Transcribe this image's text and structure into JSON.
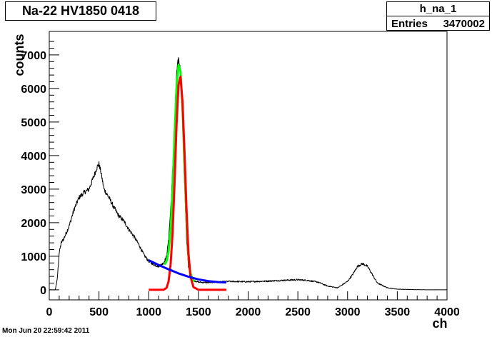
{
  "chart_data": {
    "type": "line",
    "title": "Na-22 HV1850 0418",
    "xlabel": "ch",
    "ylabel": "counts",
    "xlim": [
      0,
      4000
    ],
    "ylim": [
      -300,
      7700
    ],
    "x_ticks": [
      0,
      500,
      1000,
      1500,
      2000,
      2500,
      3000,
      3500,
      4000
    ],
    "y_ticks": [
      0,
      1000,
      2000,
      3000,
      4000,
      5000,
      6000,
      7000
    ],
    "grid": false,
    "stats": {
      "name": "h_na_1",
      "entries_label": "Entries",
      "entries_value": "3470002"
    },
    "series": [
      {
        "color": "#000000",
        "style": "histogram",
        "x": [
          0,
          60,
          80,
          100,
          120,
          150,
          200,
          250,
          300,
          350,
          400,
          450,
          480,
          500,
          520,
          550,
          600,
          650,
          700,
          750,
          800,
          850,
          900,
          950,
          1000,
          1050,
          1100,
          1150,
          1180,
          1200,
          1230,
          1260,
          1280,
          1300,
          1320,
          1340,
          1360,
          1380,
          1400,
          1420,
          1450,
          1500,
          1550,
          1600,
          1700,
          1800,
          2000,
          2200,
          2400,
          2500,
          2600,
          2700,
          2800,
          2900,
          3000,
          3050,
          3100,
          3150,
          3200,
          3250,
          3300,
          3400,
          3500,
          3600,
          3700,
          3800,
          3900,
          4000
        ],
        "y": [
          0,
          0,
          300,
          1100,
          1400,
          1550,
          1900,
          2400,
          2750,
          2900,
          3000,
          3400,
          3650,
          3750,
          3500,
          3000,
          2750,
          2450,
          2200,
          2050,
          1800,
          1600,
          1350,
          1050,
          850,
          750,
          700,
          800,
          1000,
          1500,
          2800,
          5000,
          6400,
          6900,
          6500,
          5000,
          3200,
          1500,
          700,
          400,
          280,
          230,
          220,
          215,
          230,
          250,
          240,
          260,
          290,
          300,
          280,
          230,
          110,
          60,
          250,
          450,
          700,
          780,
          700,
          450,
          200,
          60,
          20,
          10,
          5,
          0,
          0,
          0
        ]
      },
      {
        "color": "#00ff00",
        "style": "fit",
        "x": [
          1160,
          1180,
          1200,
          1220,
          1240,
          1260,
          1280,
          1300,
          1320,
          1340,
          1360,
          1380,
          1400,
          1420,
          1440,
          1460
        ],
        "y": [
          750,
          850,
          1150,
          1800,
          3000,
          4600,
          6000,
          6700,
          6500,
          5400,
          3700,
          2100,
          1000,
          500,
          320,
          250
        ]
      },
      {
        "color": "#ff0000",
        "style": "fit",
        "x": [
          1000,
          1150,
          1180,
          1200,
          1220,
          1240,
          1260,
          1280,
          1300,
          1320,
          1340,
          1360,
          1380,
          1400,
          1420,
          1450,
          1500,
          1780
        ],
        "y": [
          0,
          0,
          60,
          250,
          750,
          1700,
          3200,
          4900,
          6100,
          6350,
          5600,
          4100,
          2400,
          1100,
          400,
          80,
          0,
          0
        ]
      },
      {
        "color": "#0000ff",
        "style": "fit",
        "x": [
          1000,
          1100,
          1200,
          1300,
          1400,
          1500,
          1600,
          1700,
          1780
        ],
        "y": [
          880,
          740,
          610,
          490,
          390,
          310,
          260,
          230,
          220
        ]
      }
    ]
  },
  "footer": {
    "timestamp": "Mon Jun 20 22:59:42 2011"
  }
}
